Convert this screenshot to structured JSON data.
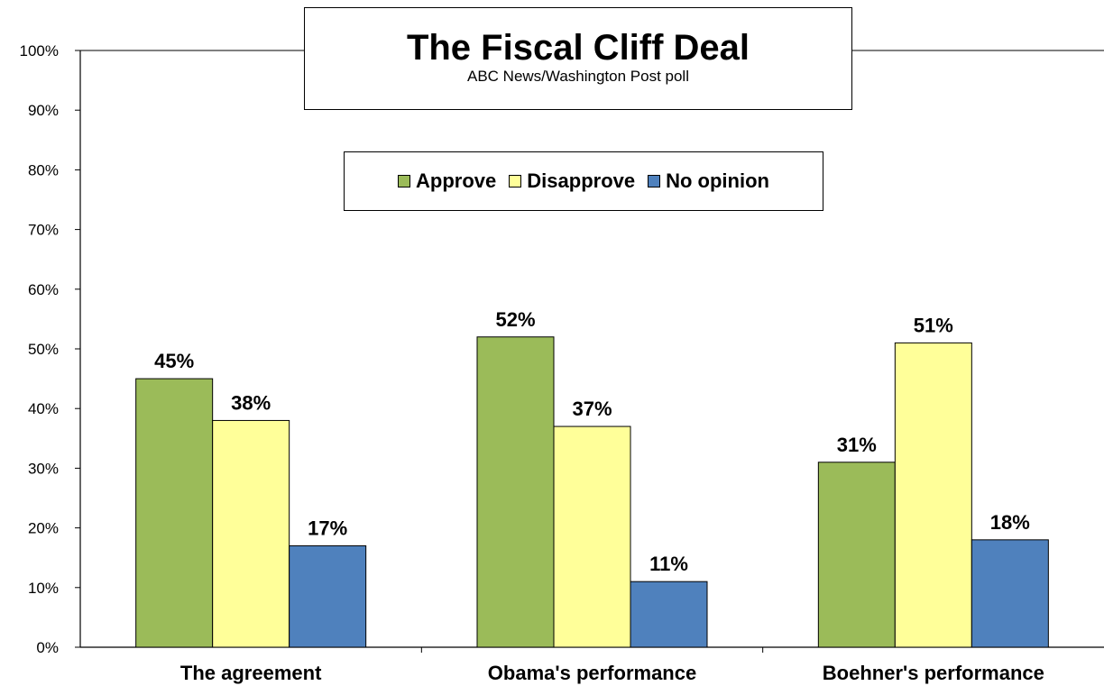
{
  "chart_data": {
    "type": "bar",
    "title": "The Fiscal Cliff Deal",
    "subtitle": "ABC News/Washington  Post poll",
    "categories": [
      "The agreement",
      "Obama's performance",
      "Boehner's performance"
    ],
    "series": [
      {
        "name": "Approve",
        "color": "#9BBB59",
        "values": [
          45,
          52,
          31
        ],
        "labels": [
          "45%",
          "52%",
          "31%"
        ]
      },
      {
        "name": "Disapprove",
        "color": "#FFFF99",
        "values": [
          38,
          37,
          51
        ],
        "labels": [
          "38%",
          "37%",
          "51%"
        ]
      },
      {
        "name": "No opinion",
        "color": "#4F81BD",
        "values": [
          17,
          11,
          18
        ],
        "labels": [
          "17%",
          "11%",
          "18%"
        ]
      }
    ],
    "ylim": [
      0,
      100
    ],
    "yticks": [
      0,
      10,
      20,
      30,
      40,
      50,
      60,
      70,
      80,
      90,
      100
    ],
    "ytick_labels": [
      "0%",
      "10%",
      "20%",
      "30%",
      "40%",
      "50%",
      "60%",
      "70%",
      "80%",
      "90%",
      "100%"
    ],
    "grid": false,
    "legend_position": "top-center"
  }
}
